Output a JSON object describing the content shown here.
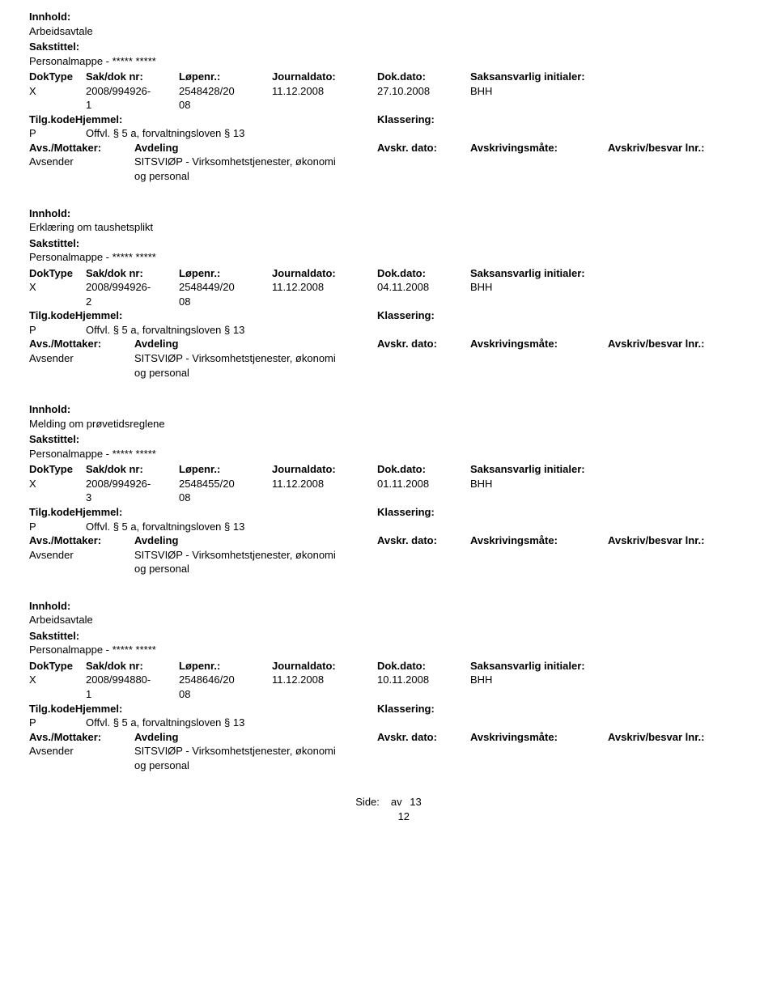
{
  "labels": {
    "innhold": "Innhold:",
    "sakstittel": "Sakstittel:",
    "doktype": "DokType",
    "sakdoknr": "Sak/dok nr:",
    "lopenr": "Løpenr.:",
    "journaldato": "Journaldato:",
    "dokdato": "Dok.dato:",
    "saksansvarlig": "Saksansvarlig initialer:",
    "tilgkode": "Tilg.kode",
    "hjemmel": "Hjemmel:",
    "tilgkodehjemmel": "Tilg.kodeHjemmel:",
    "klassering": "Klassering:",
    "avsmottaker": "Avs./Mottaker:",
    "avdeling": "Avdeling",
    "avskrdato": "Avskr. dato:",
    "avskrivmate": "Avskrivingsmåte:",
    "avskrivlnr": "Avskriv/besvar lnr.:",
    "avsender": "Avsender",
    "side": "Side:",
    "av": "av"
  },
  "common": {
    "personalmappe": "Personalmappe - ***** *****",
    "tilg_p": "P",
    "tilg_text": "Offvl. § 5 a, forvaltningsloven § 13",
    "sender_text1": "SITSVIØP - Virksomhetstjenester, økonomi",
    "sender_text2": "og personal"
  },
  "records": [
    {
      "innhold": "Arbeidsavtale",
      "doktype": "X",
      "sakdok1": "2008/994926-",
      "sakdok2": "1",
      "lopenr1": "2548428/20",
      "lopenr2": "08",
      "jdato": "11.12.2008",
      "ddato": "27.10.2008",
      "saks": "BHH"
    },
    {
      "innhold": "Erklæring om taushetsplikt",
      "doktype": "X",
      "sakdok1": "2008/994926-",
      "sakdok2": "2",
      "lopenr1": "2548449/20",
      "lopenr2": "08",
      "jdato": "11.12.2008",
      "ddato": "04.11.2008",
      "saks": "BHH"
    },
    {
      "innhold": "Melding om prøvetidsreglene",
      "doktype": "X",
      "sakdok1": "2008/994926-",
      "sakdok2": "3",
      "lopenr1": "2548455/20",
      "lopenr2": "08",
      "jdato": "11.12.2008",
      "ddato": "01.11.2008",
      "saks": "BHH"
    },
    {
      "innhold": "Arbeidsavtale",
      "doktype": "X",
      "sakdok1": "2008/994880-",
      "sakdok2": "1",
      "lopenr1": "2548646/20",
      "lopenr2": "08",
      "jdato": "11.12.2008",
      "ddato": "10.11.2008",
      "saks": "BHH"
    }
  ],
  "footer": {
    "page": "12",
    "total": "13"
  }
}
